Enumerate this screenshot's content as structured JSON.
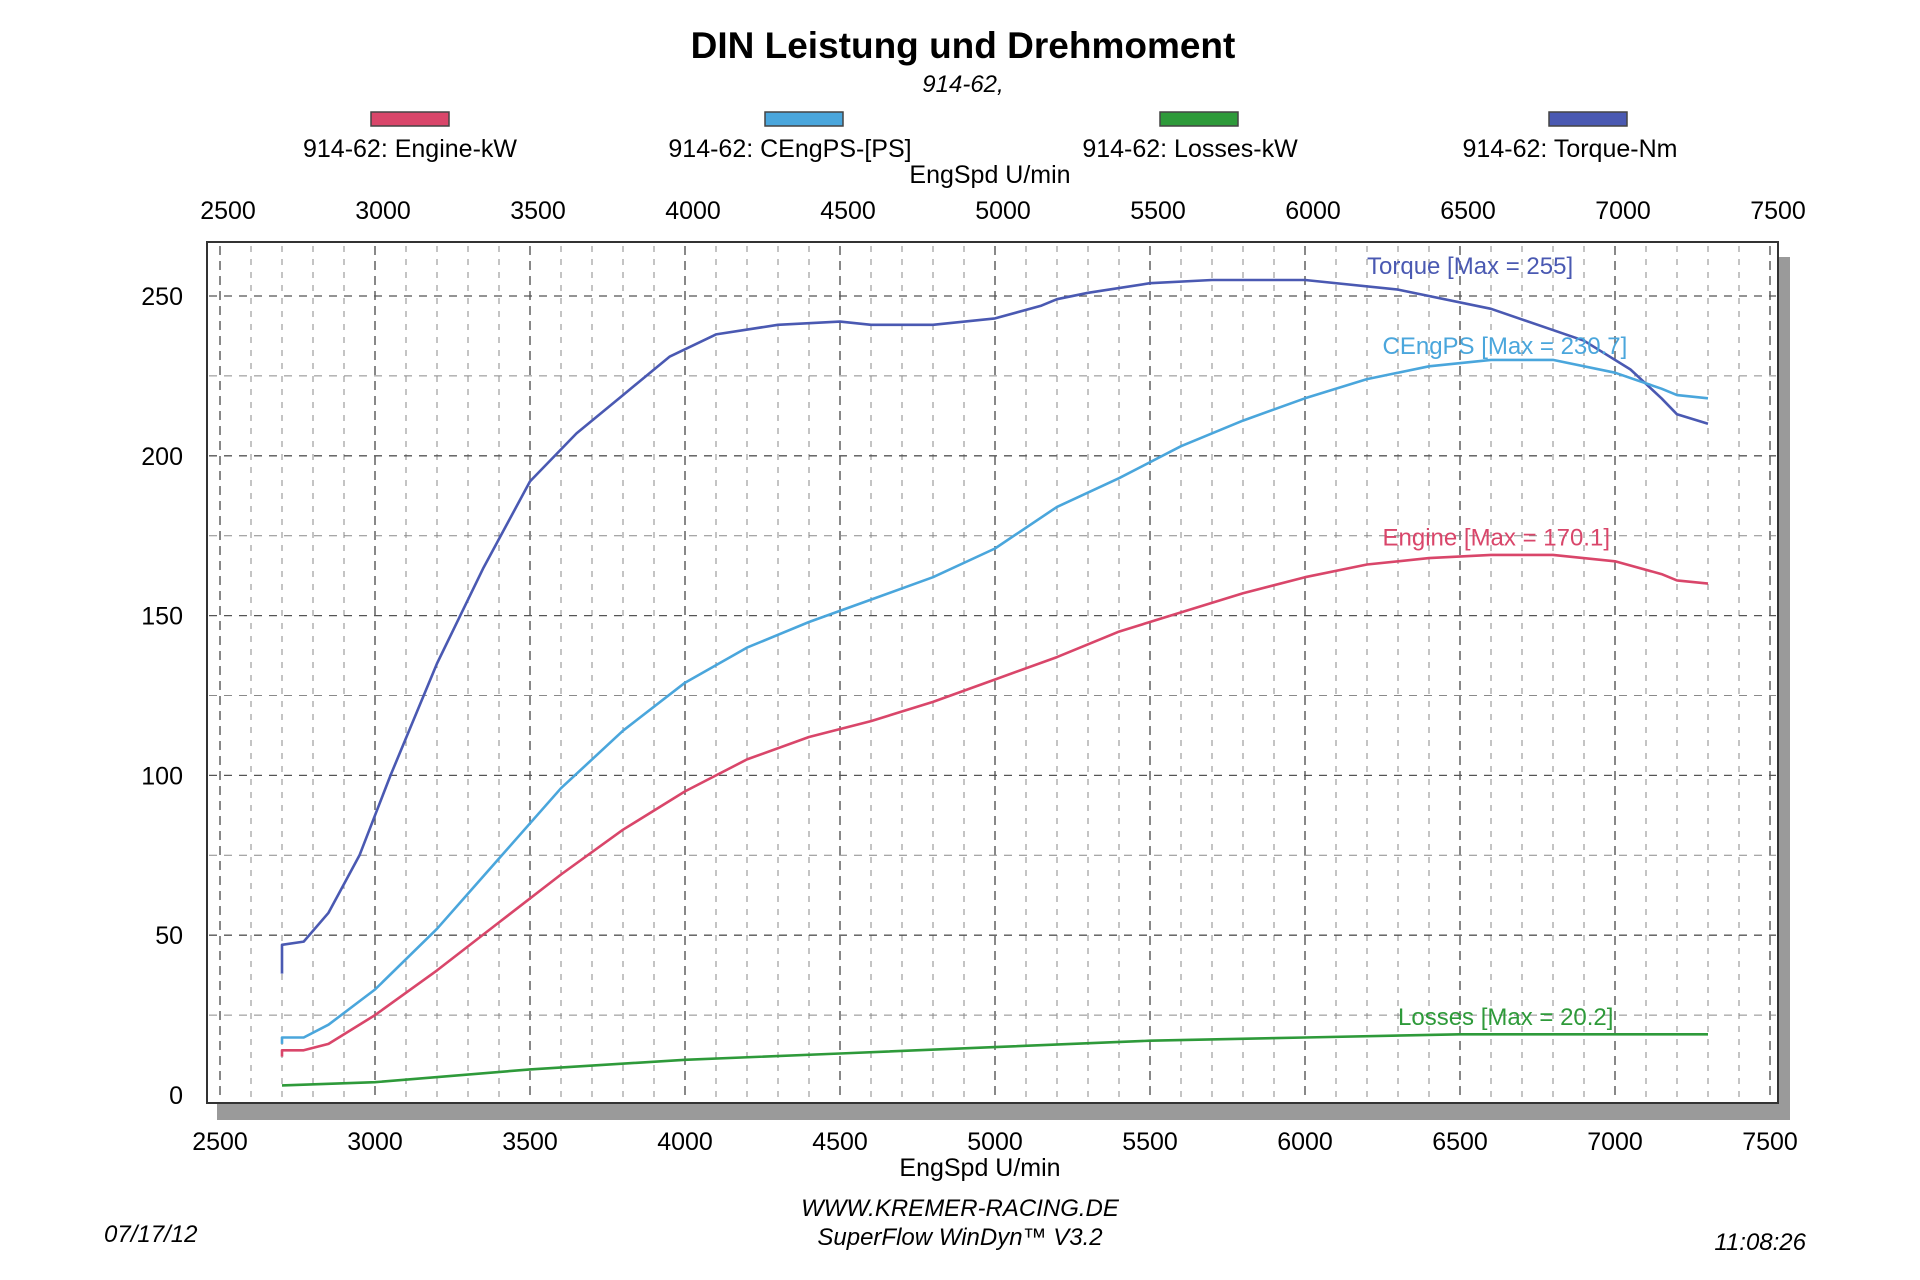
{
  "title": "DIN Leistung und Drehmoment",
  "subtitle": "914-62,",
  "colors": {
    "engine": "#d9466a",
    "cengps": "#4aa6dc",
    "losses": "#2e9a3a",
    "torque": "#4a59b2"
  },
  "chart_data": {
    "type": "line",
    "title": "DIN Leistung und Drehmoment",
    "xlabel": "EngSpd U/min",
    "x_top_label": "EngSpd U/min",
    "xlim": [
      2500,
      7500
    ],
    "ylim": [
      0,
      270
    ],
    "x_ticks": [
      2500,
      3000,
      3500,
      4000,
      4500,
      5000,
      5500,
      6000,
      6500,
      7000,
      7500
    ],
    "y_ticks": [
      0,
      50,
      100,
      150,
      200,
      250
    ],
    "grid": true,
    "legend_position": "top",
    "legend": [
      {
        "label": "914-62: Engine-kW",
        "key": "engine"
      },
      {
        "label": "914-62: CEngPS-[PS]",
        "key": "cengps"
      },
      {
        "label": "914-62: Losses-kW",
        "key": "losses"
      },
      {
        "label": "914-62: Torque-Nm",
        "key": "torque"
      }
    ],
    "series": [
      {
        "key": "torque",
        "annotation": "Torque [Max = 255]",
        "annotation_at": [
          6200,
          255
        ],
        "points": [
          [
            2700,
            38
          ],
          [
            2700,
            47
          ],
          [
            2770,
            48
          ],
          [
            2850,
            57
          ],
          [
            2950,
            75
          ],
          [
            3050,
            100
          ],
          [
            3200,
            135
          ],
          [
            3350,
            165
          ],
          [
            3500,
            192
          ],
          [
            3650,
            207
          ],
          [
            3800,
            219
          ],
          [
            3950,
            231
          ],
          [
            4100,
            238
          ],
          [
            4300,
            241
          ],
          [
            4500,
            242
          ],
          [
            4600,
            241
          ],
          [
            4800,
            241
          ],
          [
            5000,
            243
          ],
          [
            5150,
            247
          ],
          [
            5200,
            249
          ],
          [
            5300,
            251
          ],
          [
            5500,
            254
          ],
          [
            5700,
            255
          ],
          [
            6000,
            255
          ],
          [
            6300,
            252
          ],
          [
            6600,
            246
          ],
          [
            6900,
            236
          ],
          [
            7050,
            227
          ],
          [
            7150,
            218
          ],
          [
            7200,
            213
          ],
          [
            7300,
            210
          ]
        ]
      },
      {
        "key": "cengps",
        "annotation": "CEngPS [Max = 230.7]",
        "annotation_at": [
          6250,
          230
        ],
        "points": [
          [
            2700,
            16
          ],
          [
            2700,
            18
          ],
          [
            2770,
            18
          ],
          [
            2850,
            22
          ],
          [
            3000,
            33
          ],
          [
            3200,
            52
          ],
          [
            3400,
            74
          ],
          [
            3600,
            96
          ],
          [
            3800,
            114
          ],
          [
            4000,
            129
          ],
          [
            4200,
            140
          ],
          [
            4400,
            148
          ],
          [
            4600,
            155
          ],
          [
            4800,
            162
          ],
          [
            5000,
            171
          ],
          [
            5200,
            184
          ],
          [
            5400,
            193
          ],
          [
            5600,
            203
          ],
          [
            5800,
            211
          ],
          [
            6000,
            218
          ],
          [
            6200,
            224
          ],
          [
            6400,
            228
          ],
          [
            6600,
            230
          ],
          [
            6800,
            230
          ],
          [
            7000,
            226
          ],
          [
            7150,
            221
          ],
          [
            7200,
            219
          ],
          [
            7300,
            218
          ]
        ]
      },
      {
        "key": "engine",
        "annotation": "Engine [Max = 170.1]",
        "annotation_at": [
          6250,
          170
        ],
        "points": [
          [
            2700,
            12
          ],
          [
            2700,
            14
          ],
          [
            2770,
            14
          ],
          [
            2850,
            16
          ],
          [
            3000,
            25
          ],
          [
            3200,
            39
          ],
          [
            3400,
            54
          ],
          [
            3600,
            69
          ],
          [
            3800,
            83
          ],
          [
            4000,
            95
          ],
          [
            4200,
            105
          ],
          [
            4400,
            112
          ],
          [
            4600,
            117
          ],
          [
            4800,
            123
          ],
          [
            5000,
            130
          ],
          [
            5200,
            137
          ],
          [
            5400,
            145
          ],
          [
            5600,
            151
          ],
          [
            5800,
            157
          ],
          [
            6000,
            162
          ],
          [
            6200,
            166
          ],
          [
            6400,
            168
          ],
          [
            6600,
            169
          ],
          [
            6800,
            169
          ],
          [
            7000,
            167
          ],
          [
            7150,
            163
          ],
          [
            7200,
            161
          ],
          [
            7300,
            160
          ]
        ]
      },
      {
        "key": "losses",
        "annotation": "Losses [Max = 20.2]",
        "annotation_at": [
          6300,
          20
        ],
        "points": [
          [
            2700,
            3
          ],
          [
            3000,
            4
          ],
          [
            3500,
            8
          ],
          [
            4000,
            11
          ],
          [
            4500,
            13
          ],
          [
            5000,
            15
          ],
          [
            5500,
            17
          ],
          [
            6000,
            18
          ],
          [
            6500,
            19
          ],
          [
            6900,
            19
          ],
          [
            7000,
            19
          ],
          [
            7300,
            19
          ]
        ]
      }
    ]
  },
  "footer": {
    "website": "WWW.KREMER-RACING.DE",
    "software": "SuperFlow WinDyn™ V3.2",
    "date": "07/17/12",
    "time": "11:08:26"
  }
}
